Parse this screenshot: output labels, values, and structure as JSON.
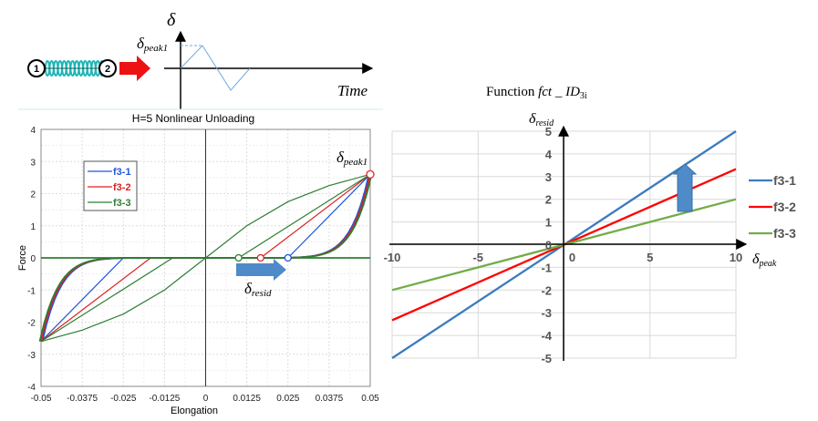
{
  "diagram": {
    "node1": "1",
    "node2": "2",
    "delta_label": "δ",
    "peak_label": "δ",
    "peak_sub": "peak1",
    "time_label": "Time"
  },
  "chart_data": [
    {
      "type": "line",
      "title": "H=5 Nonlinear Unloading",
      "xlabel": "Elongation",
      "ylabel": "Force",
      "xlim": [
        -0.05,
        0.05
      ],
      "ylim": [
        -4,
        4
      ],
      "xticks": [
        "-0.05",
        "-0.0375",
        "-0.025",
        "-0.0125",
        "0",
        "0.0125",
        "0.025",
        "0.0375",
        "0.05"
      ],
      "yticks": [
        "-4",
        "-3",
        "-2",
        "-1",
        "0",
        "1",
        "2",
        "3",
        "4"
      ],
      "grid": true,
      "legend": {
        "placement": "top-left",
        "entries": [
          "f3-1",
          "f3-2",
          "f3-3"
        ]
      },
      "colors": {
        "f3-1": "#2255dd",
        "f3-2": "#dd2222",
        "f3-3": "#2e7d32"
      },
      "peak_force": 2.6,
      "series": [
        {
          "name": "f3-1",
          "residual": 0.025,
          "unloading": [
            [
              0.05,
              2.6
            ],
            [
              0.025,
              0
            ]
          ],
          "neg_unloading": [
            [
              -0.05,
              -2.6
            ],
            [
              -0.025,
              0
            ]
          ]
        },
        {
          "name": "f3-2",
          "residual": 0.0167,
          "unloading": [
            [
              0.05,
              2.6
            ],
            [
              0.0167,
              0
            ]
          ],
          "neg_unloading": [
            [
              -0.05,
              -2.6
            ],
            [
              -0.0167,
              0
            ]
          ]
        },
        {
          "name": "f3-3",
          "residual": 0.01,
          "unloading": [
            [
              0.05,
              2.6
            ],
            [
              0.01,
              0
            ]
          ],
          "neg_unloading": [
            [
              -0.05,
              -2.6
            ],
            [
              -0.01,
              0
            ]
          ],
          "curve": [
            [
              -0.05,
              -2.6
            ],
            [
              -0.0375,
              -2.25
            ],
            [
              -0.025,
              -1.75
            ],
            [
              -0.0125,
              -1.0
            ],
            [
              0,
              0
            ],
            [
              0.0125,
              1.0
            ],
            [
              0.025,
              1.75
            ],
            [
              0.0375,
              2.25
            ],
            [
              0.05,
              2.6
            ]
          ]
        }
      ],
      "annotations": {
        "peak": "δ",
        "peak_sub": "peak1",
        "resid": "δ",
        "resid_sub": "resid"
      }
    },
    {
      "type": "line",
      "title_prefix": "Function ",
      "title_fn": "fct _ ID",
      "title_sub": "3i",
      "xlabel": "δ",
      "xlabel_sub": "peak",
      "ylabel": "δ",
      "ylabel_sub": "resid",
      "xlim": [
        -10,
        10
      ],
      "ylim": [
        -5,
        5
      ],
      "xticks": [
        "-10",
        "-5",
        "0",
        "5",
        "10"
      ],
      "yticks": [
        "-5",
        "-4",
        "-3",
        "-2",
        "-1",
        "0",
        "1",
        "2",
        "3",
        "4",
        "5"
      ],
      "grid": true,
      "legend": {
        "placement": "right",
        "entries": [
          "f3-1",
          "f3-2",
          "f3-3"
        ]
      },
      "series": [
        {
          "name": "f3-1",
          "x": [
            -10,
            10
          ],
          "y": [
            -5,
            5
          ],
          "color": "#3a7bbf"
        },
        {
          "name": "f3-2",
          "x": [
            -10,
            10
          ],
          "y": [
            -3.33,
            3.33
          ],
          "color": "#ff0000"
        },
        {
          "name": "f3-3",
          "x": [
            -10,
            10
          ],
          "y": [
            -2,
            2
          ],
          "color": "#70ad47"
        }
      ]
    }
  ]
}
